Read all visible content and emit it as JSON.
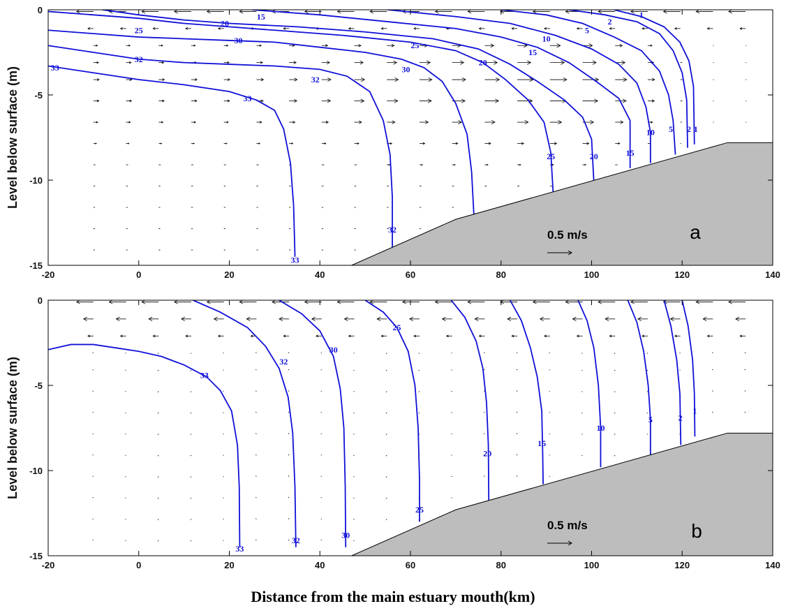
{
  "figure": {
    "xlabel": "Distance from the main estuary mouth(km)"
  },
  "chart_data": [
    {
      "type": "contour",
      "panel_label": "a",
      "ylabel": "Level below surface (m)",
      "xlim": [
        -20,
        140
      ],
      "ylim": [
        -15,
        0
      ],
      "x_ticks": [
        -20,
        0,
        20,
        40,
        60,
        80,
        100,
        120,
        140
      ],
      "y_ticks": [
        0,
        -5,
        -10,
        -15
      ],
      "colors": {
        "contour": "#1010d8",
        "bathymetry": "#bdbdbd",
        "arrows": "#000000"
      },
      "scale_arrow": {
        "label": "0.5 m/s",
        "speed": 0.5
      },
      "bathymetry": [
        [
          47,
          -15
        ],
        [
          70,
          -12.3
        ],
        [
          130,
          -7.8
        ],
        [
          140,
          -7.8
        ]
      ],
      "contours": [
        {
          "value": "33",
          "points": [
            [
              -20,
              -3.3
            ],
            [
              -10,
              -3.7
            ],
            [
              0,
              -4.1
            ],
            [
              10,
              -4.4
            ],
            [
              20,
              -4.8
            ],
            [
              26,
              -5.3
            ],
            [
              30,
              -5.9
            ],
            [
              32,
              -7
            ],
            [
              33.5,
              -9
            ],
            [
              34.2,
              -11.5
            ],
            [
              34.5,
              -14.5
            ]
          ]
        },
        {
          "value": "32",
          "points": [
            [
              -20,
              -2.1
            ],
            [
              -10,
              -2.5
            ],
            [
              0,
              -2.9
            ],
            [
              10,
              -3.1
            ],
            [
              20,
              -3.2
            ],
            [
              30,
              -3.3
            ],
            [
              40,
              -3.5
            ],
            [
              46,
              -3.9
            ],
            [
              51,
              -4.8
            ],
            [
              54,
              -6.5
            ],
            [
              55.5,
              -8.5
            ],
            [
              56,
              -11
            ],
            [
              56,
              -14
            ]
          ]
        },
        {
          "value": "30",
          "points": [
            [
              -20,
              -1.2
            ],
            [
              -10,
              -1.4
            ],
            [
              0,
              -1.6
            ],
            [
              10,
              -1.7
            ],
            [
              20,
              -1.8
            ],
            [
              30,
              -1.9
            ],
            [
              40,
              -2.2
            ],
            [
              50,
              -2.5
            ],
            [
              58,
              -2.9
            ],
            [
              63,
              -3.4
            ],
            [
              67,
              -4.2
            ],
            [
              70,
              -5.5
            ],
            [
              72.5,
              -7.3
            ],
            [
              73.5,
              -9.5
            ],
            [
              74,
              -12
            ]
          ]
        },
        {
          "value": "25",
          "points": [
            [
              -20,
              -0.1
            ],
            [
              -10,
              -0.3
            ],
            [
              0,
              -0.5
            ],
            [
              10,
              -0.8
            ],
            [
              20,
              -1
            ],
            [
              30,
              -1.2
            ],
            [
              45,
              -1.5
            ],
            [
              60,
              -1.9
            ],
            [
              70,
              -2.4
            ],
            [
              76,
              -3.1
            ],
            [
              81,
              -4.1
            ],
            [
              86,
              -5.3
            ],
            [
              89.5,
              -6.6
            ],
            [
              91,
              -8.4
            ],
            [
              91.5,
              -10.7
            ]
          ]
        },
        {
          "value": "20",
          "points": [
            [
              -8,
              0
            ],
            [
              0,
              -0.3
            ],
            [
              10,
              -0.6
            ],
            [
              20,
              -0.8
            ],
            [
              35,
              -1
            ],
            [
              50,
              -1.3
            ],
            [
              65,
              -1.7
            ],
            [
              75,
              -2.3
            ],
            [
              82,
              -3.2
            ],
            [
              88,
              -4.2
            ],
            [
              94,
              -5.3
            ],
            [
              98,
              -6.3
            ],
            [
              100,
              -7.6
            ],
            [
              100.5,
              -10.1
            ]
          ]
        },
        {
          "value": "15",
          "points": [
            [
              25,
              0
            ],
            [
              40,
              -0.3
            ],
            [
              55,
              -0.7
            ],
            [
              70,
              -1.1
            ],
            [
              80,
              -1.6
            ],
            [
              88,
              -2.2
            ],
            [
              95,
              -3.1
            ],
            [
              101,
              -4.2
            ],
            [
              106,
              -5.2
            ],
            [
              108.5,
              -6.5
            ],
            [
              108.5,
              -9.3
            ]
          ]
        },
        {
          "value": "10",
          "points": [
            [
              55,
              0
            ],
            [
              70,
              -0.4
            ],
            [
              82,
              -0.8
            ],
            [
              92,
              -1.5
            ],
            [
              100,
              -2.3
            ],
            [
              106,
              -3.2
            ],
            [
              110,
              -4.3
            ],
            [
              112,
              -5.7
            ],
            [
              113,
              -7.2
            ],
            [
              113,
              -9
            ]
          ]
        },
        {
          "value": "5",
          "points": [
            [
              80,
              0
            ],
            [
              90,
              -0.3
            ],
            [
              98,
              -0.8
            ],
            [
              105,
              -1.6
            ],
            [
              111,
              -2.4
            ],
            [
              115,
              -3.6
            ],
            [
              117,
              -5
            ],
            [
              118,
              -6.5
            ],
            [
              118.5,
              -8.5
            ]
          ]
        },
        {
          "value": "2",
          "points": [
            [
              95,
              0
            ],
            [
              103,
              -0.3
            ],
            [
              110,
              -0.7
            ],
            [
              115,
              -1.4
            ],
            [
              118,
              -2.4
            ],
            [
              120,
              -3.7
            ],
            [
              121,
              -5.3
            ],
            [
              121.2,
              -8.1
            ]
          ]
        },
        {
          "value": "1",
          "points": [
            [
              105,
              0
            ],
            [
              111,
              -0.4
            ],
            [
              116,
              -1
            ],
            [
              119.5,
              -1.9
            ],
            [
              121.5,
              -3
            ],
            [
              122.5,
              -4.5
            ],
            [
              122.7,
              -7.9
            ]
          ]
        }
      ],
      "labels": [
        {
          "text": "15",
          "x": 27,
          "y": -0.4
        },
        {
          "text": "20",
          "x": 19,
          "y": -0.8
        },
        {
          "text": "25",
          "x": 0,
          "y": -1.2
        },
        {
          "text": "30",
          "x": 22,
          "y": -1.8
        },
        {
          "text": "32",
          "x": 0,
          "y": -2.9
        },
        {
          "text": "33",
          "x": -18.5,
          "y": -3.4
        },
        {
          "text": "32",
          "x": 39,
          "y": -4.1
        },
        {
          "text": "33",
          "x": 24,
          "y": -5.2
        },
        {
          "text": "30",
          "x": 59,
          "y": -3.5
        },
        {
          "text": "25",
          "x": 61,
          "y": -2.1
        },
        {
          "text": "20",
          "x": 76,
          "y": -3.1
        },
        {
          "text": "15",
          "x": 87,
          "y": -2.5
        },
        {
          "text": "10",
          "x": 90,
          "y": -1.7
        },
        {
          "text": "5",
          "x": 99,
          "y": -1.2
        },
        {
          "text": "2",
          "x": 104,
          "y": -0.7
        },
        {
          "text": "1",
          "x": 111,
          "y": -0.3
        },
        {
          "text": "10",
          "x": 113,
          "y": -7.2
        },
        {
          "text": "5",
          "x": 117.5,
          "y": -7
        },
        {
          "text": "2",
          "x": 121.5,
          "y": -7
        },
        {
          "text": "1",
          "x": 123,
          "y": -7
        },
        {
          "text": "25",
          "x": 91,
          "y": -8.6
        },
        {
          "text": "20",
          "x": 100.5,
          "y": -8.6
        },
        {
          "text": "15",
          "x": 108.5,
          "y": -8.4
        },
        {
          "text": "32",
          "x": 56,
          "y": -12.9
        },
        {
          "text": "33",
          "x": 34.5,
          "y": -14.7
        }
      ]
    },
    {
      "type": "contour",
      "panel_label": "b",
      "ylabel": "Level below surface (m)",
      "xlim": [
        -20,
        140
      ],
      "ylim": [
        -15,
        0
      ],
      "x_ticks": [
        -20,
        0,
        20,
        40,
        60,
        80,
        100,
        120,
        140
      ],
      "y_ticks": [
        0,
        -5,
        -10,
        -15
      ],
      "colors": {
        "contour": "#1010d8",
        "bathymetry": "#bdbdbd",
        "arrows": "#000000"
      },
      "scale_arrow": {
        "label": "0.5 m/s",
        "speed": 0.5
      },
      "bathymetry": [
        [
          47,
          -15
        ],
        [
          70,
          -12.3
        ],
        [
          130,
          -7.8
        ],
        [
          140,
          -7.8
        ]
      ],
      "contours": [
        {
          "value": "33",
          "points": [
            [
              -20,
              -2.9
            ],
            [
              -15,
              -2.6
            ],
            [
              -10,
              -2.6
            ],
            [
              -5,
              -2.8
            ],
            [
              0,
              -3
            ],
            [
              5,
              -3.3
            ],
            [
              10,
              -3.8
            ],
            [
              15,
              -4.5
            ],
            [
              18,
              -5.3
            ],
            [
              20.5,
              -6.5
            ],
            [
              21.8,
              -8.5
            ],
            [
              22.2,
              -11
            ],
            [
              22.3,
              -14.5
            ]
          ]
        },
        {
          "value": "32",
          "points": [
            [
              12,
              0
            ],
            [
              18,
              -0.7
            ],
            [
              24,
              -1.6
            ],
            [
              28,
              -2.7
            ],
            [
              31,
              -4
            ],
            [
              33,
              -5.7
            ],
            [
              34,
              -7.8
            ],
            [
              34.5,
              -11
            ],
            [
              34.7,
              -14.5
            ]
          ]
        },
        {
          "value": "30",
          "points": [
            [
              31,
              0
            ],
            [
              36,
              -0.8
            ],
            [
              40,
              -1.8
            ],
            [
              43,
              -3.3
            ],
            [
              44.5,
              -5.2
            ],
            [
              45.3,
              -7.5
            ],
            [
              45.6,
              -11
            ],
            [
              45.7,
              -14.5
            ]
          ]
        },
        {
          "value": "25",
          "points": [
            [
              50,
              0
            ],
            [
              54,
              -0.7
            ],
            [
              57,
              -1.6
            ],
            [
              59.5,
              -3
            ],
            [
              61,
              -5
            ],
            [
              61.7,
              -7.5
            ],
            [
              62,
              -10.5
            ],
            [
              62,
              -13
            ]
          ]
        },
        {
          "value": "20",
          "points": [
            [
              69,
              0
            ],
            [
              72,
              -1
            ],
            [
              74.5,
              -2.4
            ],
            [
              76,
              -4
            ],
            [
              76.8,
              -6
            ],
            [
              77.2,
              -8.5
            ],
            [
              77.3,
              -11.8
            ]
          ]
        },
        {
          "value": "15",
          "points": [
            [
              82,
              0
            ],
            [
              84.5,
              -1.2
            ],
            [
              86.5,
              -2.8
            ],
            [
              88,
              -4.5
            ],
            [
              89,
              -6.5
            ],
            [
              89.2,
              -9
            ],
            [
              89.3,
              -10.8
            ]
          ]
        },
        {
          "value": "10",
          "points": [
            [
              97,
              0
            ],
            [
              99,
              -1.2
            ],
            [
              100.5,
              -2.8
            ],
            [
              101.5,
              -5
            ],
            [
              102,
              -7.5
            ],
            [
              102,
              -9.8
            ]
          ]
        },
        {
          "value": "5",
          "points": [
            [
              108,
              0
            ],
            [
              110,
              -1.3
            ],
            [
              111.5,
              -3
            ],
            [
              112.5,
              -5
            ],
            [
              113,
              -7
            ],
            [
              113,
              -9.1
            ]
          ]
        },
        {
          "value": "2",
          "points": [
            [
              116,
              0
            ],
            [
              117.5,
              -1.5
            ],
            [
              118.8,
              -3.5
            ],
            [
              119.5,
              -5.5
            ],
            [
              119.7,
              -8.5
            ]
          ]
        },
        {
          "value": "1",
          "points": [
            [
              120,
              0
            ],
            [
              121.3,
              -1.5
            ],
            [
              122.3,
              -3.5
            ],
            [
              122.7,
              -5.5
            ],
            [
              122.8,
              -8
            ]
          ]
        }
      ],
      "labels": [
        {
          "text": "33",
          "x": 14.5,
          "y": -4.4
        },
        {
          "text": "32",
          "x": 32,
          "y": -3.6
        },
        {
          "text": "30",
          "x": 43,
          "y": -2.9
        },
        {
          "text": "25",
          "x": 57,
          "y": -1.6
        },
        {
          "text": "20",
          "x": 77,
          "y": -9
        },
        {
          "text": "15",
          "x": 89,
          "y": -8.4
        },
        {
          "text": "10",
          "x": 102,
          "y": -7.5
        },
        {
          "text": "5",
          "x": 113,
          "y": -7
        },
        {
          "text": "2",
          "x": 119.6,
          "y": -6.9
        },
        {
          "text": "1",
          "x": 122.8,
          "y": -6.5
        },
        {
          "text": "25",
          "x": 62,
          "y": -12.3
        },
        {
          "text": "30",
          "x": 45.7,
          "y": -13.8
        },
        {
          "text": "32",
          "x": 34.7,
          "y": -14.1
        },
        {
          "text": "33",
          "x": 22.3,
          "y": -14.6
        }
      ]
    }
  ]
}
